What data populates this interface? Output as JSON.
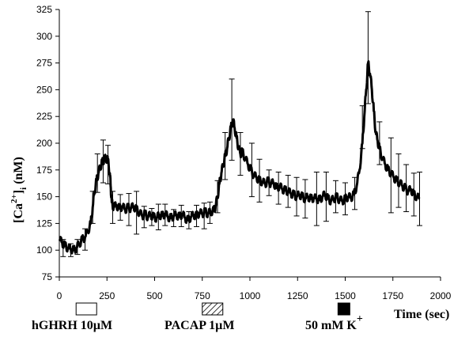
{
  "chart_data": {
    "type": "line",
    "xlabel": "Time (sec)",
    "ylabel_parts": {
      "bracket_open": "[Ca",
      "sup": "2+",
      "bracket_close": "]",
      "sub": "i",
      "unit": " (nM)"
    },
    "xlim": [
      0,
      2000
    ],
    "ylim": [
      75,
      325
    ],
    "x_ticks": [
      0,
      250,
      500,
      750,
      1000,
      1250,
      1500,
      1750,
      2000
    ],
    "y_ticks": [
      75,
      100,
      125,
      150,
      175,
      200,
      225,
      250,
      275,
      300,
      325
    ],
    "grid": false,
    "series": [
      {
        "color": "#000000",
        "points": [
          [
            0,
            110
          ],
          [
            15,
            107
          ],
          [
            30,
            104
          ],
          [
            45,
            102
          ],
          [
            60,
            101
          ],
          [
            75,
            100
          ],
          [
            90,
            102
          ],
          [
            105,
            106
          ],
          [
            120,
            110
          ],
          [
            135,
            112
          ],
          [
            150,
            118
          ],
          [
            165,
            125
          ],
          [
            175,
            140
          ],
          [
            185,
            155
          ],
          [
            195,
            165
          ],
          [
            205,
            172
          ],
          [
            215,
            178
          ],
          [
            225,
            182
          ],
          [
            235,
            185
          ],
          [
            245,
            186
          ],
          [
            255,
            184
          ],
          [
            265,
            172
          ],
          [
            270,
            158
          ],
          [
            275,
            145
          ],
          [
            285,
            140
          ],
          [
            300,
            142
          ],
          [
            315,
            139
          ],
          [
            330,
            141
          ],
          [
            345,
            138
          ],
          [
            360,
            140
          ],
          [
            375,
            139
          ],
          [
            390,
            141
          ],
          [
            405,
            138
          ],
          [
            420,
            135
          ],
          [
            435,
            132
          ],
          [
            450,
            134
          ],
          [
            465,
            131
          ],
          [
            480,
            133
          ],
          [
            495,
            131
          ],
          [
            510,
            130
          ],
          [
            525,
            133
          ],
          [
            540,
            132
          ],
          [
            555,
            134
          ],
          [
            570,
            131
          ],
          [
            585,
            130
          ],
          [
            600,
            132
          ],
          [
            615,
            133
          ],
          [
            630,
            131
          ],
          [
            645,
            134
          ],
          [
            660,
            130
          ],
          [
            675,
            128
          ],
          [
            690,
            131
          ],
          [
            705,
            133
          ],
          [
            720,
            132
          ],
          [
            735,
            135
          ],
          [
            750,
            134
          ],
          [
            765,
            136
          ],
          [
            780,
            134
          ],
          [
            795,
            136
          ],
          [
            810,
            137
          ],
          [
            820,
            141
          ],
          [
            830,
            150
          ],
          [
            840,
            162
          ],
          [
            850,
            172
          ],
          [
            860,
            180
          ],
          [
            870,
            188
          ],
          [
            880,
            195
          ],
          [
            890,
            205
          ],
          [
            900,
            214
          ],
          [
            910,
            222
          ],
          [
            920,
            214
          ],
          [
            930,
            205
          ],
          [
            940,
            196
          ],
          [
            950,
            190
          ],
          [
            960,
            192
          ],
          [
            975,
            186
          ],
          [
            990,
            180
          ],
          [
            1005,
            175
          ],
          [
            1020,
            170
          ],
          [
            1035,
            168
          ],
          [
            1050,
            165
          ],
          [
            1065,
            164
          ],
          [
            1080,
            162
          ],
          [
            1095,
            165
          ],
          [
            1110,
            162
          ],
          [
            1125,
            163
          ],
          [
            1140,
            158
          ],
          [
            1155,
            160
          ],
          [
            1170,
            157
          ],
          [
            1185,
            156
          ],
          [
            1200,
            155
          ],
          [
            1215,
            153
          ],
          [
            1230,
            152
          ],
          [
            1245,
            150
          ],
          [
            1260,
            152
          ],
          [
            1275,
            150
          ],
          [
            1290,
            148
          ],
          [
            1305,
            150
          ],
          [
            1320,
            148
          ],
          [
            1335,
            149
          ],
          [
            1350,
            148
          ],
          [
            1365,
            147
          ],
          [
            1380,
            150
          ],
          [
            1395,
            152
          ],
          [
            1410,
            148
          ],
          [
            1425,
            146
          ],
          [
            1440,
            148
          ],
          [
            1455,
            150
          ],
          [
            1470,
            147
          ],
          [
            1485,
            146
          ],
          [
            1500,
            148
          ],
          [
            1515,
            150
          ],
          [
            1530,
            149
          ],
          [
            1545,
            152
          ],
          [
            1560,
            160
          ],
          [
            1575,
            175
          ],
          [
            1590,
            200
          ],
          [
            1600,
            225
          ],
          [
            1610,
            250
          ],
          [
            1620,
            275
          ],
          [
            1630,
            265
          ],
          [
            1640,
            250
          ],
          [
            1650,
            230
          ],
          [
            1660,
            210
          ],
          [
            1670,
            202
          ],
          [
            1680,
            195
          ],
          [
            1695,
            186
          ],
          [
            1710,
            180
          ],
          [
            1725,
            175
          ],
          [
            1740,
            172
          ],
          [
            1755,
            168
          ],
          [
            1770,
            165
          ],
          [
            1785,
            163
          ],
          [
            1800,
            160
          ],
          [
            1815,
            158
          ],
          [
            1830,
            155
          ],
          [
            1845,
            157
          ],
          [
            1860,
            152
          ],
          [
            1875,
            150
          ],
          [
            1890,
            148
          ]
        ],
        "error_bars": [
          [
            20,
            102,
            8
          ],
          [
            60,
            100,
            6
          ],
          [
            95,
            103,
            7
          ],
          [
            135,
            110,
            10
          ],
          [
            175,
            140,
            15
          ],
          [
            200,
            172,
            18
          ],
          [
            230,
            183,
            20
          ],
          [
            255,
            180,
            18
          ],
          [
            280,
            140,
            15
          ],
          [
            320,
            140,
            12
          ],
          [
            365,
            138,
            15
          ],
          [
            405,
            135,
            20
          ],
          [
            445,
            131,
            10
          ],
          [
            485,
            131,
            8
          ],
          [
            520,
            131,
            12
          ],
          [
            555,
            133,
            10
          ],
          [
            600,
            130,
            8
          ],
          [
            640,
            132,
            10
          ],
          [
            680,
            128,
            8
          ],
          [
            720,
            132,
            10
          ],
          [
            760,
            132,
            12
          ],
          [
            790,
            135,
            10
          ],
          [
            830,
            150,
            15
          ],
          [
            870,
            188,
            22
          ],
          [
            905,
            222,
            38
          ],
          [
            950,
            190,
            20
          ],
          [
            1010,
            175,
            25
          ],
          [
            1050,
            165,
            20
          ],
          [
            1100,
            163,
            12
          ],
          [
            1150,
            158,
            15
          ],
          [
            1200,
            155,
            15
          ],
          [
            1245,
            150,
            18
          ],
          [
            1290,
            148,
            18
          ],
          [
            1350,
            148,
            25
          ],
          [
            1400,
            150,
            23
          ],
          [
            1450,
            150,
            15
          ],
          [
            1500,
            148,
            15
          ],
          [
            1550,
            153,
            15
          ],
          [
            1590,
            215,
            20
          ],
          [
            1620,
            280,
            43
          ],
          [
            1680,
            200,
            20
          ],
          [
            1740,
            170,
            35
          ],
          [
            1780,
            165,
            25
          ],
          [
            1820,
            158,
            22
          ],
          [
            1860,
            152,
            20
          ],
          [
            1890,
            148,
            25
          ]
        ]
      }
    ],
    "legend_items": [
      {
        "label": "hGHRH 10µM",
        "x": 88,
        "style": "open",
        "text_anchor_x": 0
      },
      {
        "label": "PACAP 1µM",
        "x": 750,
        "style": "hatched",
        "text_anchor_x": 0
      },
      {
        "label": "50 mM K",
        "label_sup": "+",
        "x": 1462,
        "style": "filled",
        "text_anchor_x": 0
      }
    ]
  }
}
